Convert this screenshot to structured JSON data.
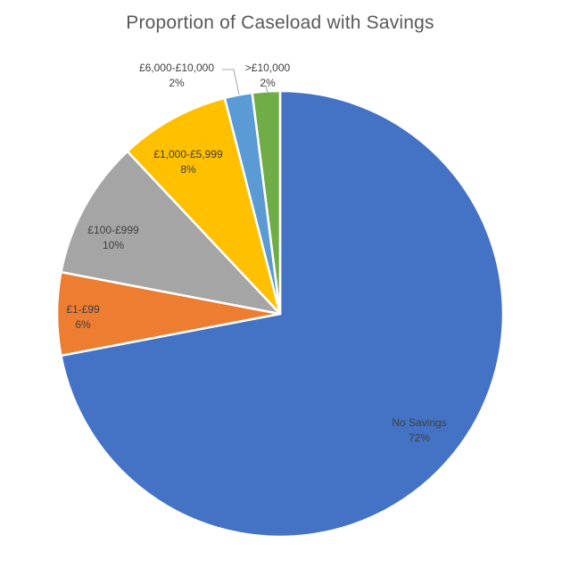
{
  "chart_data": {
    "type": "pie",
    "title": "Proportion of Caseload with Savings",
    "slices": [
      {
        "name": "No Savings",
        "value": 72,
        "value_label": "72%",
        "color": "#4472C4"
      },
      {
        "name": "£1-£99",
        "value": 6,
        "value_label": "6%",
        "color": "#ED7D31"
      },
      {
        "name": "£100-£999",
        "value": 10,
        "value_label": "10%",
        "color": "#A5A5A5"
      },
      {
        "name": "£1,000-£5,999",
        "value": 8,
        "value_label": "8%",
        "color": "#FFC000"
      },
      {
        "name": "£6,000-£10,000",
        "value": 2,
        "value_label": "2%",
        "color": "#5B9BD5"
      },
      {
        "name": ">£10,000",
        "value": 2,
        "value_label": "2%",
        "color": "#70AD47"
      }
    ],
    "start_angle_deg": 0,
    "direction": "clockwise",
    "legend": "none",
    "data_labels": "category-name-and-percent"
  }
}
